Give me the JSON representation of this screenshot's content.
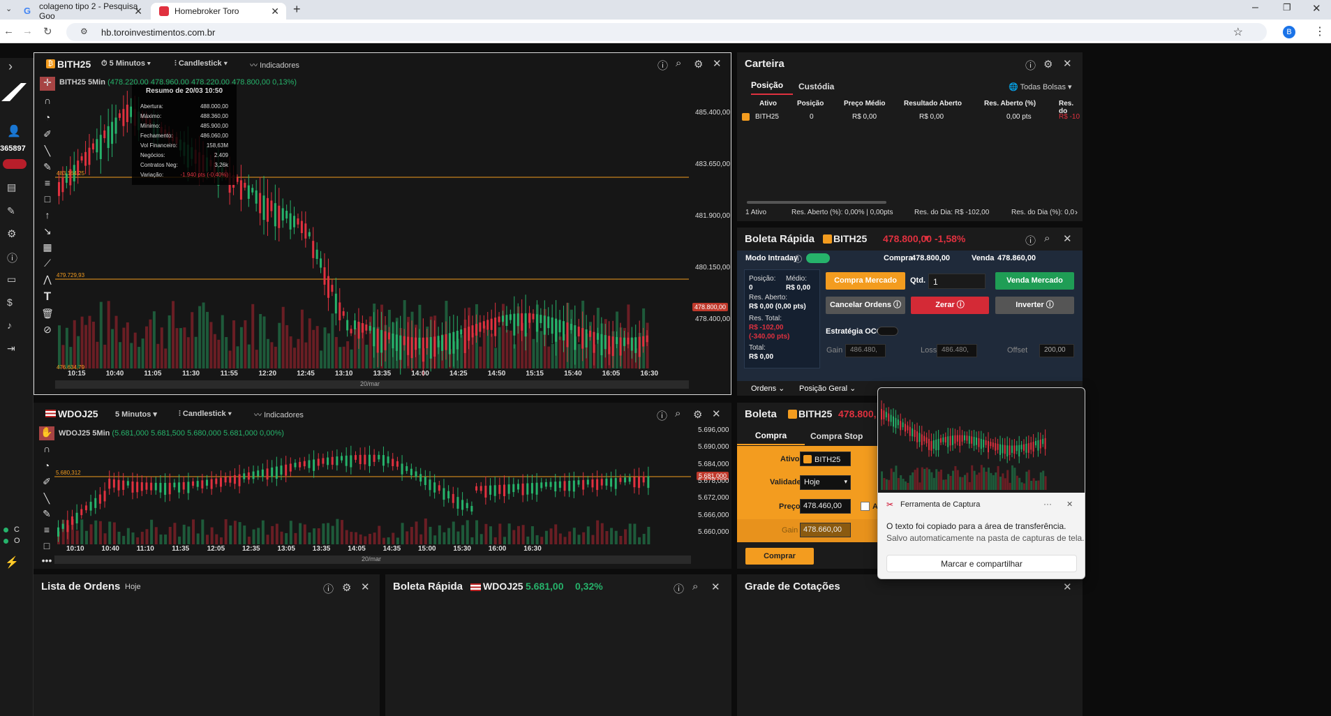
{
  "browser": {
    "tab1": "colageno tipo 2 - Pesquisa Goo",
    "tab2": "Homebroker Toro",
    "url": "hb.toroinvestimentos.com.br",
    "avatar": "B"
  },
  "sidebar": {
    "account": "365897"
  },
  "chart1": {
    "symbol": "BITH25",
    "interval": "5 Minutos",
    "type": "Candlestick",
    "indicators": "Indicadores",
    "legend": "BITH25 5Min",
    "ohlc": "(478.220,00 478.960,00 478.220,00 478.800,00 0,13%)",
    "tooltip": {
      "title": "Resumo de 20/03 10:50",
      "rows": [
        [
          "Abertura:",
          "488.000,00"
        ],
        [
          "Máximo:",
          "488.360,00"
        ],
        [
          "Mínimo:",
          "485.900,00"
        ],
        [
          "Fechamento:",
          "486.060,00"
        ],
        [
          "Vol Financeiro:",
          "158,63M"
        ],
        [
          "Negócios:",
          "2.409"
        ],
        [
          "Contratos Neg:",
          "3,26k"
        ],
        [
          "Variação:",
          "-1.940 pts (-0,40%)"
        ]
      ]
    },
    "yaxis": [
      "485.400,00",
      "483.650,00",
      "481.900,00",
      "480.150,00",
      "478.400,00"
    ],
    "price_tag": "478.800,00",
    "hline1": "483.164,25",
    "hline2": "479.729,93",
    "low_label": "476.634,79",
    "xaxis": [
      "10:15",
      "10:40",
      "11:05",
      "11:30",
      "11:55",
      "12:20",
      "12:45",
      "13:10",
      "13:35",
      "14:00",
      "14:25",
      "14:50",
      "15:15",
      "15:40",
      "16:05",
      "16:30"
    ],
    "date": "20/mar"
  },
  "chart2": {
    "symbol": "WDOJ25",
    "interval": "5 Minutos",
    "type": "Candlestick",
    "indicators": "Indicadores",
    "legend": "WDOJ25 5Min",
    "ohlc": "(5.681,000 5.681,500 5.680,000 5.681,000 0,00%)",
    "yaxis": [
      "5.696,000",
      "5.690,000",
      "5.684,000",
      "5.678,000",
      "5.672,000",
      "5.666,000",
      "5.660,000"
    ],
    "price_tag": "5.681,000",
    "hline": "5.680,312",
    "xaxis": [
      "10:10",
      "10:40",
      "11:10",
      "11:35",
      "12:05",
      "12:35",
      "13:05",
      "13:35",
      "14:05",
      "14:35",
      "15:00",
      "15:30",
      "16:00",
      "16:30"
    ],
    "date": "20/mar"
  },
  "carteira": {
    "title": "Carteira",
    "tabs": [
      "Posição",
      "Custódia"
    ],
    "filter": "Todas Bolsas",
    "columns": [
      "Ativo",
      "Posição",
      "Preço Médio",
      "Resultado Aberto",
      "Res. Aberto (%)",
      "Res. do"
    ],
    "row": [
      "BITH25",
      "0",
      "R$ 0,00",
      "R$ 0,00",
      "0,00 pts",
      "R$ -10"
    ],
    "footer": [
      "1 Ativo",
      "Res. Aberto (%): 0,00% | 0,00pts",
      "Res. do Dia: R$ -102,00",
      "Res. do Dia (%): 0,0"
    ]
  },
  "boleta_rapida": {
    "title": "Boleta Rápida",
    "symbol": "BITH25",
    "price": "478.800,00",
    "change": "-1,58%",
    "intraday": "Modo Intraday",
    "compra_label": "Compra",
    "compra": "478.800,00",
    "venda_label": "Venda",
    "venda": "478.860,00",
    "posicao_label": "Posição:",
    "posicao": "0",
    "medio_label": "Médio:",
    "medio": "R$ 0,00",
    "res_aberto_label": "Res. Aberto:",
    "res_aberto": "R$ 0,00 (0,00 pts)",
    "res_total_label": "Res. Total:",
    "res_total": "R$ -102,00",
    "res_total_pts": "(-340,00 pts)",
    "total_label": "Total:",
    "total": "R$ 0,00",
    "compra_mercado": "Compra Mercado",
    "qtd_label": "Qtd.",
    "qtd": "1",
    "venda_mercado": "Venda Mercado",
    "cancelar": "Cancelar Ordens",
    "zerar": "Zerar",
    "inverter": "Inverter",
    "oco": "Estratégia OCO",
    "gain_label": "Gain",
    "gain": "486.480,",
    "loss_label": "Loss",
    "loss": "486.480,",
    "offset_label": "Offset",
    "offset": "200,00",
    "ordens": "Ordens",
    "posicao_geral": "Posição Geral"
  },
  "boleta": {
    "title": "Boleta",
    "symbol": "BITH25",
    "price": "478.800,",
    "tabs": [
      "Compra",
      "Compra Stop"
    ],
    "ativo_label": "Ativo",
    "ativo": "BITH25",
    "validade_label": "Validade",
    "validade": "Hoje",
    "preco_label": "Preço",
    "preco": "478.460,00",
    "gain_label": "Gain",
    "gain": "478.660,00",
    "comprar": "Comprar",
    "extra": "A"
  },
  "bottom": {
    "lista": "Lista de Ordens",
    "lista_sub": "Hoje",
    "boleta2": "Boleta Rápida",
    "boleta2_sym": "WDOJ25",
    "boleta2_price": "5.681,00",
    "boleta2_chg": "0,32%",
    "grade": "Grade de Cotações"
  },
  "toast": {
    "app": "Ferramenta de Captura",
    "msg1": "O texto foi copiado para a área de transferência.",
    "msg2": "Salvo automaticamente na pasta de capturas de tela.",
    "action": "Marcar e compartilhar",
    "more": "···"
  },
  "status": {
    "c": "C",
    "o": "O"
  },
  "colors": {
    "green": "#1f9d55",
    "red": "#e0313f",
    "orange": "#f39c1f",
    "accent": "#26b36b"
  }
}
